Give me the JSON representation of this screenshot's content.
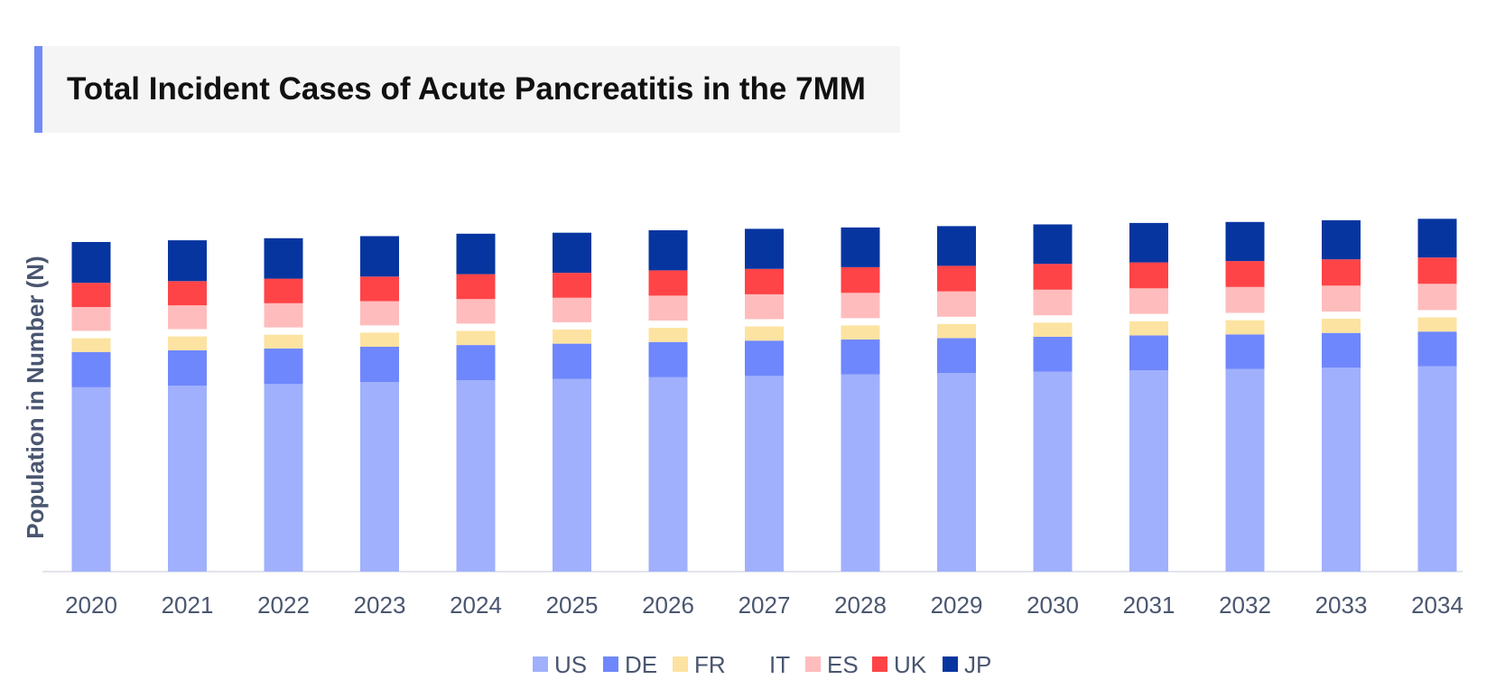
{
  "title": "Total Incident Cases of Acute Pancreatitis in the 7MM",
  "chart_data": {
    "type": "bar",
    "stacked": true,
    "title": "Total Incident Cases of Acute Pancreatitis in the 7MM",
    "xlabel": "",
    "ylabel": "Population in Number (N)",
    "ylim": [
      0,
      100
    ],
    "grid": false,
    "legend_position": "bottom",
    "categories": [
      "2020",
      "2021",
      "2022",
      "2023",
      "2024",
      "2025",
      "2026",
      "2027",
      "2028",
      "2029",
      "2030",
      "2031",
      "2032",
      "2033",
      "2034"
    ],
    "series": [
      {
        "name": "US",
        "color": "#a0b0fc",
        "values": [
          53.3,
          53.8,
          54.3,
          54.8,
          55.3,
          55.7,
          56.2,
          56.6,
          57.0,
          57.4,
          57.8,
          58.2,
          58.6,
          59.0,
          59.4
        ]
      },
      {
        "name": "DE",
        "color": "#6f87fc",
        "values": [
          10.2,
          10.2,
          10.2,
          10.2,
          10.2,
          10.2,
          10.2,
          10.2,
          10.1,
          10.1,
          10.1,
          10.1,
          10.0,
          10.0,
          10.0
        ]
      },
      {
        "name": "FR",
        "color": "#fde3a1",
        "values": [
          4.0,
          4.0,
          4.0,
          4.1,
          4.1,
          4.1,
          4.1,
          4.1,
          4.1,
          4.1,
          4.1,
          4.1,
          4.1,
          4.1,
          4.1
        ]
      },
      {
        "name": "IT",
        "color": "#ffffff",
        "values": [
          2.1,
          2.1,
          2.1,
          2.1,
          2.1,
          2.1,
          2.1,
          2.1,
          2.1,
          2.1,
          2.1,
          2.1,
          2.1,
          2.1,
          2.1
        ]
      },
      {
        "name": "ES",
        "color": "#ffbcbd",
        "values": [
          6.9,
          6.9,
          7.0,
          7.0,
          7.1,
          7.1,
          7.2,
          7.2,
          7.3,
          7.3,
          7.4,
          7.4,
          7.5,
          7.5,
          7.6
        ]
      },
      {
        "name": "UK",
        "color": "#ff4447",
        "values": [
          7.0,
          7.0,
          7.1,
          7.1,
          7.2,
          7.2,
          7.3,
          7.3,
          7.4,
          7.4,
          7.5,
          7.5,
          7.5,
          7.6,
          7.6
        ]
      },
      {
        "name": "JP",
        "color": "#0735a0",
        "values": [
          11.8,
          11.8,
          11.7,
          11.7,
          11.7,
          11.6,
          11.6,
          11.6,
          11.5,
          11.5,
          11.4,
          11.4,
          11.3,
          11.3,
          11.2
        ]
      }
    ]
  }
}
